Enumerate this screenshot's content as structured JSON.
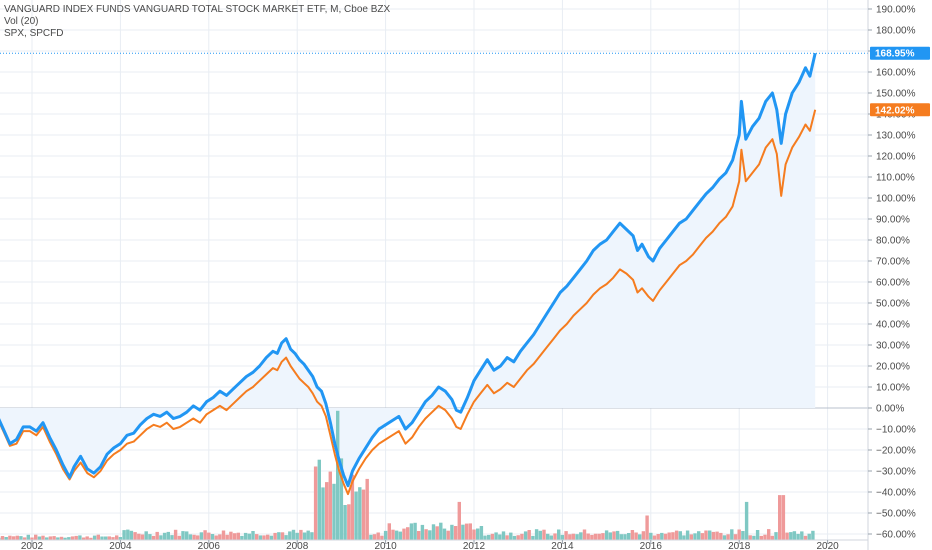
{
  "header": {
    "line1": "VANGUARD INDEX FUNDS VANGUARD TOTAL STOCK MARKET ETF, M, Cboe BZX",
    "line2": "Vol (20)",
    "line3": "SPX, SPCFD"
  },
  "colors": {
    "vti": "#2196f3",
    "spx": "#f57c1f",
    "grid": "#e8edf3",
    "area": "#eef5fd",
    "vol_up": "#7fc8c3",
    "vol_down": "#ef9a9a"
  },
  "last_tags": {
    "vti": "168.95%",
    "spx": "142.02%"
  },
  "chart_data": {
    "type": "line",
    "title": "",
    "ylabel": "",
    "ylim": [
      -62,
      195
    ],
    "xlim": [
      2000.95,
      2020.0
    ],
    "y_ticks": [
      190,
      180,
      170,
      160,
      150,
      140,
      130,
      120,
      110,
      100,
      90,
      80,
      70,
      60,
      50,
      40,
      30,
      20,
      10,
      0,
      -10,
      -20,
      -30,
      -40,
      -50,
      -60
    ],
    "y_tick_labels": [
      "190.00%",
      "180.00%",
      "170.00%",
      "160.00%",
      "150.00%",
      "140.00%",
      "130.00%",
      "120.00%",
      "110.00%",
      "100.00%",
      "90.00%",
      "80.00%",
      "70.00%",
      "60.00%",
      "50.00%",
      "40.00%",
      "30.00%",
      "20.00%",
      "10.00%",
      "0.00%",
      "−10.00%",
      "−20.00%",
      "−30.00%",
      "−40.00%",
      "−50.00%",
      "−60.00%"
    ],
    "x_ticks": [
      2002,
      2004,
      2006,
      2008,
      2010,
      2012,
      2014,
      2016,
      2018,
      2020
    ],
    "x_tick_labels": [
      "2002",
      "2004",
      "2006",
      "2008",
      "2010",
      "2012",
      "2014",
      "2016",
      "2018",
      "2020"
    ],
    "series": [
      {
        "key": "vti",
        "points": [
          [
            2001.0,
            0
          ],
          [
            2001.2,
            -3
          ],
          [
            2001.35,
            -10
          ],
          [
            2001.5,
            -17
          ],
          [
            2001.65,
            -15
          ],
          [
            2001.8,
            -9
          ],
          [
            2001.95,
            -9
          ],
          [
            2002.1,
            -11
          ],
          [
            2002.25,
            -7
          ],
          [
            2002.4,
            -14
          ],
          [
            2002.55,
            -20
          ],
          [
            2002.7,
            -27
          ],
          [
            2002.85,
            -33
          ],
          [
            2002.95,
            -28
          ],
          [
            2003.1,
            -23
          ],
          [
            2003.25,
            -29
          ],
          [
            2003.4,
            -31
          ],
          [
            2003.55,
            -28
          ],
          [
            2003.7,
            -22
          ],
          [
            2003.85,
            -19
          ],
          [
            2004.0,
            -17
          ],
          [
            2004.15,
            -13
          ],
          [
            2004.3,
            -12
          ],
          [
            2004.45,
            -8
          ],
          [
            2004.6,
            -5
          ],
          [
            2004.75,
            -3
          ],
          [
            2004.9,
            -4
          ],
          [
            2005.05,
            -2
          ],
          [
            2005.2,
            -5
          ],
          [
            2005.35,
            -4
          ],
          [
            2005.5,
            -2
          ],
          [
            2005.65,
            1
          ],
          [
            2005.8,
            -1
          ],
          [
            2005.95,
            3
          ],
          [
            2006.1,
            5
          ],
          [
            2006.25,
            8
          ],
          [
            2006.4,
            6
          ],
          [
            2006.55,
            9
          ],
          [
            2006.7,
            12
          ],
          [
            2006.85,
            15
          ],
          [
            2007.0,
            17
          ],
          [
            2007.15,
            20
          ],
          [
            2007.3,
            24
          ],
          [
            2007.45,
            27
          ],
          [
            2007.55,
            26
          ],
          [
            2007.65,
            31
          ],
          [
            2007.75,
            33
          ],
          [
            2007.85,
            28
          ],
          [
            2007.95,
            26
          ],
          [
            2008.05,
            23
          ],
          [
            2008.15,
            21
          ],
          [
            2008.25,
            18
          ],
          [
            2008.35,
            15
          ],
          [
            2008.45,
            10
          ],
          [
            2008.55,
            8
          ],
          [
            2008.65,
            2
          ],
          [
            2008.75,
            -7
          ],
          [
            2008.85,
            -17
          ],
          [
            2008.95,
            -25
          ],
          [
            2009.05,
            -32
          ],
          [
            2009.15,
            -37
          ],
          [
            2009.25,
            -30
          ],
          [
            2009.4,
            -24
          ],
          [
            2009.55,
            -19
          ],
          [
            2009.7,
            -14
          ],
          [
            2009.85,
            -10
          ],
          [
            2010.0,
            -8
          ],
          [
            2010.15,
            -6
          ],
          [
            2010.3,
            -4
          ],
          [
            2010.45,
            -10
          ],
          [
            2010.6,
            -7
          ],
          [
            2010.75,
            -2
          ],
          [
            2010.9,
            3
          ],
          [
            2011.05,
            6
          ],
          [
            2011.2,
            10
          ],
          [
            2011.35,
            8
          ],
          [
            2011.5,
            4
          ],
          [
            2011.6,
            -1
          ],
          [
            2011.7,
            -2
          ],
          [
            2011.85,
            5
          ],
          [
            2012.0,
            13
          ],
          [
            2012.15,
            18
          ],
          [
            2012.3,
            23
          ],
          [
            2012.45,
            18
          ],
          [
            2012.6,
            20
          ],
          [
            2012.75,
            24
          ],
          [
            2012.9,
            22
          ],
          [
            2013.05,
            27
          ],
          [
            2013.2,
            31
          ],
          [
            2013.35,
            35
          ],
          [
            2013.5,
            40
          ],
          [
            2013.65,
            45
          ],
          [
            2013.8,
            50
          ],
          [
            2013.95,
            55
          ],
          [
            2014.1,
            58
          ],
          [
            2014.25,
            62
          ],
          [
            2014.4,
            66
          ],
          [
            2014.55,
            70
          ],
          [
            2014.7,
            75
          ],
          [
            2014.85,
            78
          ],
          [
            2015.0,
            80
          ],
          [
            2015.15,
            84
          ],
          [
            2015.3,
            88
          ],
          [
            2015.45,
            85
          ],
          [
            2015.6,
            82
          ],
          [
            2015.7,
            75
          ],
          [
            2015.8,
            78
          ],
          [
            2015.95,
            72
          ],
          [
            2016.05,
            70
          ],
          [
            2016.2,
            76
          ],
          [
            2016.35,
            80
          ],
          [
            2016.5,
            84
          ],
          [
            2016.65,
            88
          ],
          [
            2016.8,
            90
          ],
          [
            2016.95,
            94
          ],
          [
            2017.1,
            98
          ],
          [
            2017.25,
            102
          ],
          [
            2017.4,
            105
          ],
          [
            2017.55,
            109
          ],
          [
            2017.7,
            112
          ],
          [
            2017.85,
            118
          ],
          [
            2018.0,
            130
          ],
          [
            2018.05,
            146
          ],
          [
            2018.15,
            128
          ],
          [
            2018.3,
            134
          ],
          [
            2018.45,
            138
          ],
          [
            2018.6,
            146
          ],
          [
            2018.75,
            150
          ],
          [
            2018.85,
            142
          ],
          [
            2018.95,
            126
          ],
          [
            2019.05,
            140
          ],
          [
            2019.2,
            150
          ],
          [
            2019.35,
            155
          ],
          [
            2019.5,
            162
          ],
          [
            2019.6,
            158
          ],
          [
            2019.72,
            168.95
          ]
        ]
      },
      {
        "key": "spx",
        "points": [
          [
            2001.0,
            0
          ],
          [
            2001.2,
            -4
          ],
          [
            2001.35,
            -11
          ],
          [
            2001.5,
            -18
          ],
          [
            2001.65,
            -17
          ],
          [
            2001.8,
            -11
          ],
          [
            2001.95,
            -11
          ],
          [
            2002.1,
            -13
          ],
          [
            2002.25,
            -9
          ],
          [
            2002.4,
            -16
          ],
          [
            2002.55,
            -22
          ],
          [
            2002.7,
            -29
          ],
          [
            2002.85,
            -34
          ],
          [
            2002.95,
            -30
          ],
          [
            2003.1,
            -26
          ],
          [
            2003.25,
            -31
          ],
          [
            2003.4,
            -33
          ],
          [
            2003.55,
            -30
          ],
          [
            2003.7,
            -25
          ],
          [
            2003.85,
            -22
          ],
          [
            2004.0,
            -20
          ],
          [
            2004.15,
            -17
          ],
          [
            2004.3,
            -16
          ],
          [
            2004.45,
            -13
          ],
          [
            2004.6,
            -10
          ],
          [
            2004.75,
            -8
          ],
          [
            2004.9,
            -9
          ],
          [
            2005.05,
            -7
          ],
          [
            2005.2,
            -10
          ],
          [
            2005.35,
            -9
          ],
          [
            2005.5,
            -7
          ],
          [
            2005.65,
            -5
          ],
          [
            2005.8,
            -7
          ],
          [
            2005.95,
            -3
          ],
          [
            2006.1,
            -1
          ],
          [
            2006.25,
            1
          ],
          [
            2006.4,
            -1
          ],
          [
            2006.55,
            2
          ],
          [
            2006.7,
            5
          ],
          [
            2006.85,
            8
          ],
          [
            2007.0,
            10
          ],
          [
            2007.15,
            13
          ],
          [
            2007.3,
            16
          ],
          [
            2007.45,
            19
          ],
          [
            2007.55,
            18
          ],
          [
            2007.65,
            22
          ],
          [
            2007.75,
            24
          ],
          [
            2007.85,
            20
          ],
          [
            2007.95,
            17
          ],
          [
            2008.05,
            14
          ],
          [
            2008.15,
            12
          ],
          [
            2008.25,
            10
          ],
          [
            2008.35,
            7
          ],
          [
            2008.45,
            3
          ],
          [
            2008.55,
            1
          ],
          [
            2008.65,
            -4
          ],
          [
            2008.75,
            -13
          ],
          [
            2008.85,
            -22
          ],
          [
            2008.95,
            -30
          ],
          [
            2009.05,
            -36
          ],
          [
            2009.15,
            -41
          ],
          [
            2009.25,
            -35
          ],
          [
            2009.4,
            -29
          ],
          [
            2009.55,
            -24
          ],
          [
            2009.7,
            -20
          ],
          [
            2009.85,
            -17
          ],
          [
            2010.0,
            -15
          ],
          [
            2010.15,
            -13
          ],
          [
            2010.3,
            -11
          ],
          [
            2010.45,
            -17
          ],
          [
            2010.6,
            -14
          ],
          [
            2010.75,
            -9
          ],
          [
            2010.9,
            -5
          ],
          [
            2011.05,
            -2
          ],
          [
            2011.2,
            1
          ],
          [
            2011.35,
            -1
          ],
          [
            2011.5,
            -5
          ],
          [
            2011.6,
            -9
          ],
          [
            2011.7,
            -10
          ],
          [
            2011.85,
            -3
          ],
          [
            2012.0,
            3
          ],
          [
            2012.15,
            7
          ],
          [
            2012.3,
            11
          ],
          [
            2012.45,
            7
          ],
          [
            2012.6,
            9
          ],
          [
            2012.75,
            12
          ],
          [
            2012.9,
            10
          ],
          [
            2013.05,
            14
          ],
          [
            2013.2,
            18
          ],
          [
            2013.35,
            21
          ],
          [
            2013.5,
            25
          ],
          [
            2013.65,
            29
          ],
          [
            2013.8,
            33
          ],
          [
            2013.95,
            37
          ],
          [
            2014.1,
            40
          ],
          [
            2014.25,
            44
          ],
          [
            2014.4,
            47
          ],
          [
            2014.55,
            50
          ],
          [
            2014.7,
            54
          ],
          [
            2014.85,
            57
          ],
          [
            2015.0,
            59
          ],
          [
            2015.15,
            62
          ],
          [
            2015.3,
            66
          ],
          [
            2015.45,
            64
          ],
          [
            2015.6,
            61
          ],
          [
            2015.7,
            55
          ],
          [
            2015.8,
            57
          ],
          [
            2015.95,
            53
          ],
          [
            2016.05,
            51
          ],
          [
            2016.2,
            56
          ],
          [
            2016.35,
            60
          ],
          [
            2016.5,
            64
          ],
          [
            2016.65,
            68
          ],
          [
            2016.8,
            70
          ],
          [
            2016.95,
            73
          ],
          [
            2017.1,
            77
          ],
          [
            2017.25,
            81
          ],
          [
            2017.4,
            84
          ],
          [
            2017.55,
            88
          ],
          [
            2017.7,
            91
          ],
          [
            2017.85,
            96
          ],
          [
            2018.0,
            108
          ],
          [
            2018.05,
            123
          ],
          [
            2018.15,
            108
          ],
          [
            2018.3,
            112
          ],
          [
            2018.45,
            116
          ],
          [
            2018.6,
            124
          ],
          [
            2018.75,
            128
          ],
          [
            2018.85,
            121
          ],
          [
            2018.95,
            101
          ],
          [
            2019.05,
            116
          ],
          [
            2019.2,
            124
          ],
          [
            2019.35,
            129
          ],
          [
            2019.5,
            135
          ],
          [
            2019.6,
            132
          ],
          [
            2019.72,
            142.02
          ]
        ]
      }
    ],
    "volume": {
      "y_bottom": -61,
      "y_top_max": 1,
      "max": 100,
      "bars": []
    }
  }
}
